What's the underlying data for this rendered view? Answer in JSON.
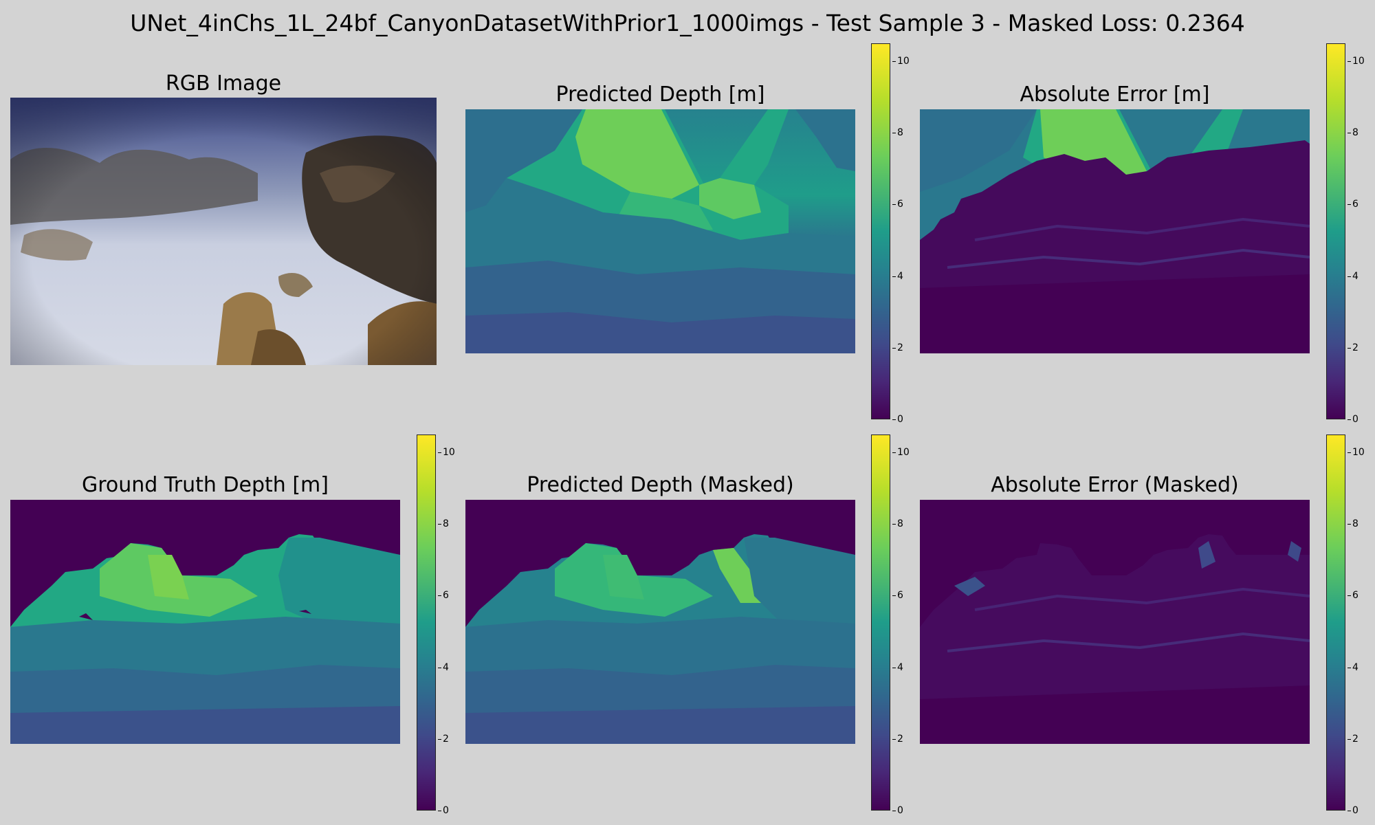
{
  "figure": {
    "suptitle": "UNet_4inChs_1L_24bf_CanyonDatasetWithPrior1_1000imgs - Test Sample 3 - Masked Loss: 0.2364"
  },
  "panels": [
    {
      "title": "RGB Image"
    },
    {
      "title": "Predicted Depth [m]"
    },
    {
      "title": "Absolute Error [m]"
    },
    {
      "title": "Ground Truth Depth [m]"
    },
    {
      "title": "Predicted Depth (Masked)"
    },
    {
      "title": "Absolute Error (Masked)"
    }
  ],
  "colorbar": {
    "colormap": "viridis",
    "ticks": [
      "0",
      "2",
      "4",
      "6",
      "8",
      "10"
    ],
    "range": [
      0,
      10.5
    ]
  }
}
